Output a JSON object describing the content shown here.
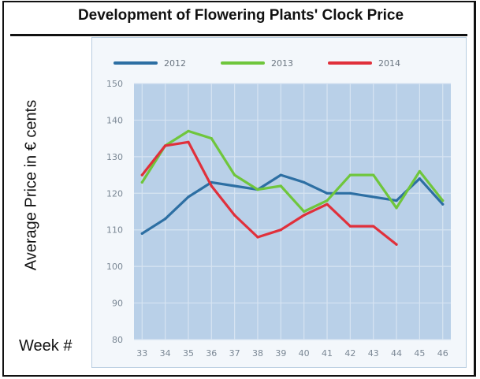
{
  "title": "Development of Flowering Plants' Clock Price",
  "ylabel": "Average Price in € cents",
  "xlabel": "Week #",
  "chart_data": {
    "type": "line",
    "title": "Development of Flowering Plants' Clock Price",
    "xlabel": "Week #",
    "ylabel": "Average Price in € cents",
    "x": [
      33,
      34,
      35,
      36,
      37,
      38,
      39,
      40,
      41,
      42,
      43,
      44,
      45,
      46
    ],
    "ylim": [
      80,
      150
    ],
    "yticks": [
      80,
      90,
      100,
      110,
      120,
      130,
      140,
      150
    ],
    "grid": true,
    "legend_position": "top",
    "series": [
      {
        "name": "2012",
        "color": "#2d6fa3",
        "values": [
          109,
          113,
          119,
          123,
          122,
          121,
          125,
          123,
          120,
          120,
          119,
          118,
          124,
          117
        ]
      },
      {
        "name": "2013",
        "color": "#6fc63c",
        "values": [
          123,
          133,
          137,
          135,
          125,
          121,
          122,
          115,
          118,
          125,
          125,
          116,
          126,
          118
        ]
      },
      {
        "name": "2014",
        "color": "#e0303b",
        "values": [
          125,
          133,
          134,
          122,
          114,
          108,
          110,
          114,
          117,
          111,
          111,
          106,
          null,
          null
        ]
      }
    ]
  }
}
